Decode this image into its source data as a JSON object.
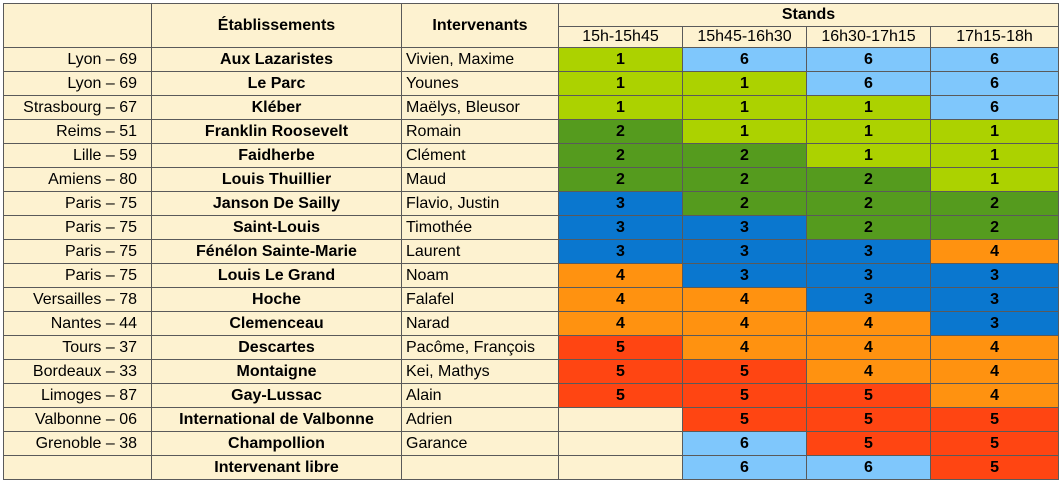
{
  "header": {
    "establishments": "Établissements",
    "speakers": "Intervenants",
    "stands": "Stands",
    "slots": [
      "15h-15h45",
      "15h45-16h30",
      "16h30-17h15",
      "17h15-18h"
    ]
  },
  "colors": {
    "1": "#acd200",
    "2": "#559b1e",
    "3": "#0a77cf",
    "4": "#ff9210",
    "5": "#ff4512",
    "6": "#7fc7fc",
    "empty": "#fdf2d0",
    "cream": "#fdf2d0"
  },
  "rows": [
    {
      "city": "Lyon – 69",
      "school": "Aux Lazaristes",
      "speakers": "Vivien, Maxime",
      "stands": [
        "1",
        "6",
        "6",
        "6"
      ]
    },
    {
      "city": "Lyon – 69",
      "school": "Le Parc",
      "speakers": "Younes",
      "stands": [
        "1",
        "1",
        "6",
        "6"
      ]
    },
    {
      "city": "Strasbourg – 67",
      "school": "Kléber",
      "speakers": "Maëlys, Bleusor",
      "stands": [
        "1",
        "1",
        "1",
        "6"
      ]
    },
    {
      "city": "Reims – 51",
      "school": "Franklin Roosevelt",
      "speakers": "Romain",
      "stands": [
        "2",
        "1",
        "1",
        "1"
      ]
    },
    {
      "city": "Lille – 59",
      "school": "Faidherbe",
      "speakers": "Clément",
      "stands": [
        "2",
        "2",
        "1",
        "1"
      ]
    },
    {
      "city": "Amiens – 80",
      "school": "Louis Thuillier",
      "speakers": "Maud",
      "stands": [
        "2",
        "2",
        "2",
        "1"
      ]
    },
    {
      "city": "Paris – 75",
      "school": "Janson De Sailly",
      "speakers": "Flavio, Justin",
      "stands": [
        "3",
        "2",
        "2",
        "2"
      ]
    },
    {
      "city": "Paris – 75",
      "school": "Saint-Louis",
      "speakers": "Timothée",
      "stands": [
        "3",
        "3",
        "2",
        "2"
      ]
    },
    {
      "city": "Paris – 75",
      "school": "Fénélon Sainte-Marie",
      "speakers": "Laurent",
      "stands": [
        "3",
        "3",
        "3",
        "4"
      ]
    },
    {
      "city": "Paris – 75",
      "school": "Louis Le Grand",
      "speakers": "Noam",
      "stands": [
        "4",
        "3",
        "3",
        "3"
      ]
    },
    {
      "city": "Versailles – 78",
      "school": "Hoche",
      "speakers": "Falafel",
      "stands": [
        "4",
        "4",
        "3",
        "3"
      ]
    },
    {
      "city": "Nantes – 44",
      "school": "Clemenceau",
      "speakers": "Narad",
      "stands": [
        "4",
        "4",
        "4",
        "3"
      ]
    },
    {
      "city": "Tours – 37",
      "school": "Descartes",
      "speakers": "Pacôme, François",
      "stands": [
        "5",
        "4",
        "4",
        "4"
      ]
    },
    {
      "city": "Bordeaux – 33",
      "school": "Montaigne",
      "speakers": "Kei, Mathys",
      "stands": [
        "5",
        "5",
        "4",
        "4"
      ]
    },
    {
      "city": "Limoges – 87",
      "school": "Gay-Lussac",
      "speakers": "Alain",
      "stands": [
        "5",
        "5",
        "5",
        "4"
      ]
    },
    {
      "city": "Valbonne – 06",
      "school": "International de Valbonne",
      "speakers": "Adrien",
      "stands": [
        "",
        "5",
        "5",
        "5"
      ]
    },
    {
      "city": "Grenoble – 38",
      "school": "Champollion",
      "speakers": "Garance",
      "stands": [
        "",
        "6",
        "5",
        "5"
      ]
    },
    {
      "city": "",
      "school": "Intervenant libre",
      "speakers": "",
      "stands": [
        "",
        "6",
        "6",
        "5"
      ]
    }
  ]
}
